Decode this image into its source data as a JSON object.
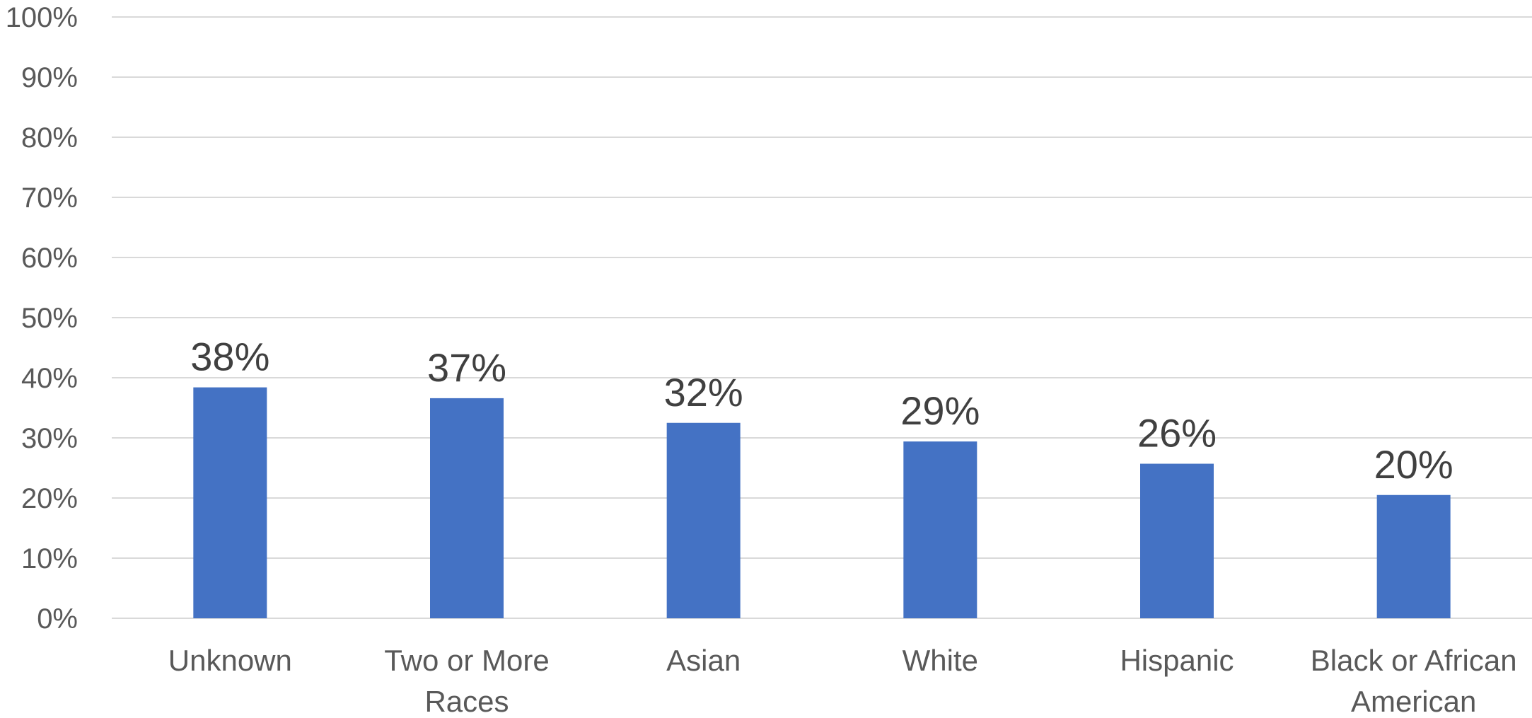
{
  "chart_data": {
    "type": "bar",
    "categories": [
      [
        "Unknown"
      ],
      [
        "Two or More",
        "Races"
      ],
      [
        "Asian"
      ],
      [
        "White"
      ],
      [
        "Hispanic"
      ],
      [
        "Black or African",
        "American"
      ]
    ],
    "values": [
      38.4,
      36.6,
      32.5,
      29.4,
      25.7,
      20.5
    ],
    "data_labels": [
      "38%",
      "37%",
      "32%",
      "29%",
      "26%",
      "20%"
    ],
    "y_ticks": [
      "0%",
      "10%",
      "20%",
      "30%",
      "40%",
      "50%",
      "60%",
      "70%",
      "80%",
      "90%",
      "100%"
    ],
    "ylim": [
      0,
      100
    ],
    "y_tick_step": 10,
    "grid": true,
    "legend": "none",
    "title": "",
    "xlabel": "",
    "ylabel": "",
    "bar_color": "#4472c4"
  }
}
